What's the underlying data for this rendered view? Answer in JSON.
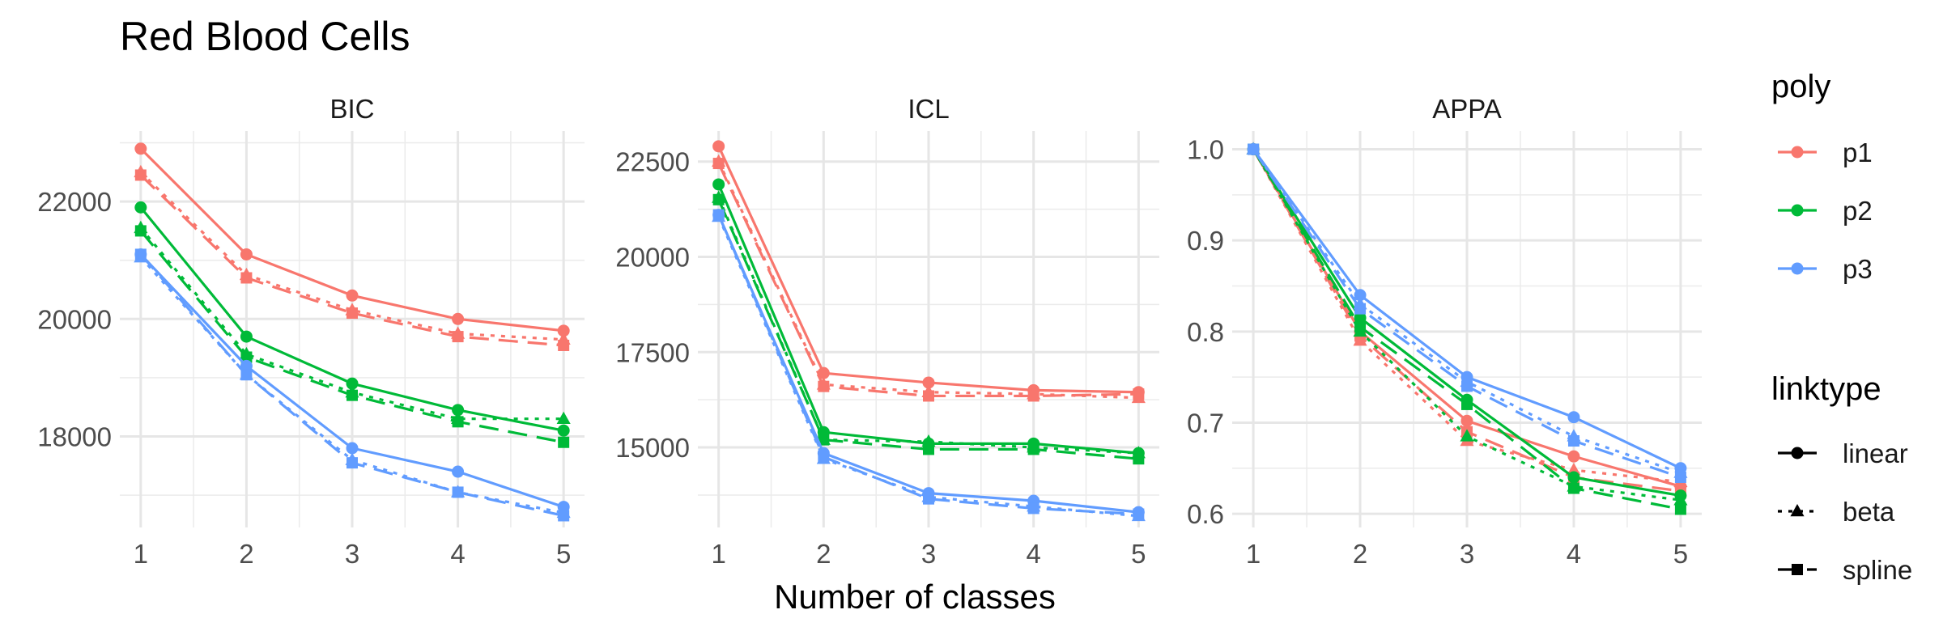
{
  "chart_data": {
    "type": "line",
    "title": "Red Blood Cells",
    "xlabel": "Number of classes",
    "x": [
      1,
      2,
      3,
      4,
      5
    ],
    "colors": {
      "p1": "#F8766D",
      "p2": "#00BA38",
      "p3": "#619CFF"
    },
    "linetypes": {
      "linear": "solid",
      "beta": "dotted",
      "spline": "dashed"
    },
    "shapes": {
      "linear": "circle",
      "beta": "triangle",
      "spline": "square"
    },
    "legend": {
      "placement": "right",
      "poly_title": "poly",
      "poly_items": [
        "p1",
        "p2",
        "p3"
      ],
      "linktype_title": "linktype",
      "linktype_items": [
        "linear",
        "beta",
        "spline"
      ]
    },
    "panels": [
      {
        "name": "BIC",
        "ylim": [
          16450,
          23200
        ],
        "yticks": [
          18000,
          20000,
          22000
        ],
        "series": [
          {
            "poly": "p1",
            "linktype": "linear",
            "values": [
              22900,
              21100,
              20400,
              20000,
              19800
            ]
          },
          {
            "poly": "p1",
            "linktype": "beta",
            "values": [
              22500,
              20750,
              20150,
              19750,
              19650
            ]
          },
          {
            "poly": "p1",
            "linktype": "spline",
            "values": [
              22450,
              20700,
              20100,
              19700,
              19550
            ]
          },
          {
            "poly": "p2",
            "linktype": "linear",
            "values": [
              21900,
              19700,
              18900,
              18450,
              18100
            ]
          },
          {
            "poly": "p2",
            "linktype": "beta",
            "values": [
              21550,
              19400,
              18750,
              18300,
              18300
            ]
          },
          {
            "poly": "p2",
            "linktype": "spline",
            "values": [
              21500,
              19350,
              18700,
              18250,
              17900
            ]
          },
          {
            "poly": "p3",
            "linktype": "linear",
            "values": [
              21100,
              19200,
              17800,
              17400,
              16800
            ]
          },
          {
            "poly": "p3",
            "linktype": "beta",
            "values": [
              21050,
              19050,
              17600,
              17050,
              16700
            ]
          },
          {
            "poly": "p3",
            "linktype": "spline",
            "values": [
              21100,
              19050,
              17550,
              17050,
              16650
            ]
          }
        ]
      },
      {
        "name": "ICL",
        "ylim": [
          12900,
          23300
        ],
        "yticks": [
          15000,
          17500,
          20000,
          22500
        ],
        "series": [
          {
            "poly": "p1",
            "linktype": "linear",
            "values": [
              22900,
              16950,
              16700,
              16500,
              16450
            ]
          },
          {
            "poly": "p1",
            "linktype": "beta",
            "values": [
              22500,
              16650,
              16450,
              16400,
              16300
            ]
          },
          {
            "poly": "p1",
            "linktype": "spline",
            "values": [
              22450,
              16600,
              16350,
              16350,
              16400
            ]
          },
          {
            "poly": "p2",
            "linktype": "linear",
            "values": [
              21900,
              15400,
              15100,
              15100,
              14850
            ]
          },
          {
            "poly": "p2",
            "linktype": "beta",
            "values": [
              21550,
              15200,
              15150,
              15000,
              14850
            ]
          },
          {
            "poly": "p2",
            "linktype": "spline",
            "values": [
              21500,
              15200,
              14950,
              14950,
              14700
            ]
          },
          {
            "poly": "p3",
            "linktype": "linear",
            "values": [
              21100,
              14850,
              13800,
              13600,
              13300
            ]
          },
          {
            "poly": "p3",
            "linktype": "beta",
            "values": [
              21050,
              14700,
              13700,
              13450,
              13200
            ]
          },
          {
            "poly": "p3",
            "linktype": "spline",
            "values": [
              21100,
              14750,
              13650,
              13400,
              13250
            ]
          }
        ]
      },
      {
        "name": "APPA",
        "ylim": [
          0.585,
          1.02
        ],
        "yticks": [
          0.6,
          0.7,
          0.8,
          0.9,
          1.0
        ],
        "ytick_labels": [
          "0.6",
          "0.7",
          "0.8",
          "0.9",
          "1.0"
        ],
        "series": [
          {
            "poly": "p1",
            "linktype": "linear",
            "values": [
              1.0,
              0.8,
              0.702,
              0.663,
              0.63
            ]
          },
          {
            "poly": "p1",
            "linktype": "beta",
            "values": [
              1.0,
              0.79,
              0.68,
              0.648,
              0.635
            ]
          },
          {
            "poly": "p1",
            "linktype": "spline",
            "values": [
              1.0,
              0.795,
              0.69,
              0.64,
              0.625
            ]
          },
          {
            "poly": "p2",
            "linktype": "linear",
            "values": [
              1.0,
              0.815,
              0.725,
              0.64,
              0.62
            ]
          },
          {
            "poly": "p2",
            "linktype": "beta",
            "values": [
              1.0,
              0.8,
              0.685,
              0.63,
              0.615
            ]
          },
          {
            "poly": "p2",
            "linktype": "spline",
            "values": [
              1.0,
              0.805,
              0.72,
              0.628,
              0.605
            ]
          },
          {
            "poly": "p3",
            "linktype": "linear",
            "values": [
              1.0,
              0.84,
              0.75,
              0.706,
              0.65
            ]
          },
          {
            "poly": "p3",
            "linktype": "beta",
            "values": [
              1.0,
              0.83,
              0.745,
              0.685,
              0.645
            ]
          },
          {
            "poly": "p3",
            "linktype": "spline",
            "values": [
              1.0,
              0.825,
              0.74,
              0.68,
              0.64
            ]
          }
        ]
      }
    ]
  }
}
